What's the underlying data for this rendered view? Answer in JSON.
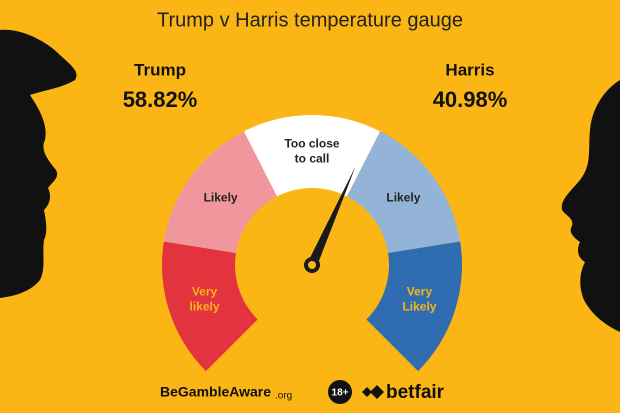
{
  "chart_data": {
    "type": "gauge",
    "title": "Trump v Harris temperature gauge",
    "candidates": [
      {
        "name": "Trump",
        "value": 58.82,
        "value_label": "58.82%"
      },
      {
        "name": "Harris",
        "value": 40.98,
        "value_label": "40.98%"
      }
    ],
    "ylim": [
      0,
      100
    ],
    "segments": [
      {
        "label": [
          "Very",
          "likely"
        ],
        "color": "#e2333f",
        "label_color": "#f7b515"
      },
      {
        "label": [
          "Likely"
        ],
        "color": "#f0979e",
        "label_color": "#222222"
      },
      {
        "label": [
          "Too close",
          "to call"
        ],
        "color": "#ffffff",
        "label_color": "#222222"
      },
      {
        "label": [
          "Likely"
        ],
        "color": "#93b4d7",
        "label_color": "#222222"
      },
      {
        "label": [
          "Very",
          "Likely"
        ],
        "color": "#2f6cb2",
        "label_color": "#f7b515"
      }
    ]
  },
  "footer": {
    "gamble": "BeGambleAware",
    "gamble_suffix": ".org",
    "age": "18+",
    "brand": "betfair"
  }
}
